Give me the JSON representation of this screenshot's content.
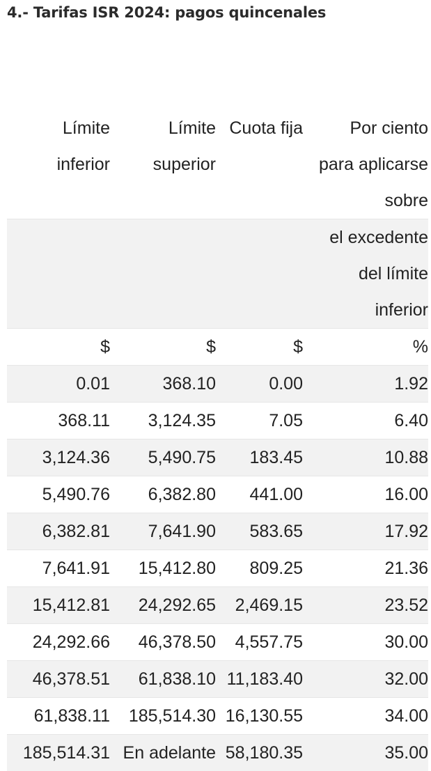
{
  "title": "4.- Tarifas ISR 2024: pagos quincenales",
  "table": {
    "header": {
      "col1": [
        "Límite",
        "inferior"
      ],
      "col2": [
        "Límite",
        "superior"
      ],
      "col3": [
        "Cuota fija"
      ],
      "col4_top": [
        "Por ciento",
        "para aplicarse",
        "sobre"
      ],
      "col4_bottom": [
        "el excedente",
        "del límite",
        "inferior"
      ]
    },
    "units": [
      "$",
      "$",
      "$",
      "%"
    ],
    "rows": [
      [
        "0.01",
        "368.10",
        "0.00",
        "1.92"
      ],
      [
        "368.11",
        "3,124.35",
        "7.05",
        "6.40"
      ],
      [
        "3,124.36",
        "5,490.75",
        "183.45",
        "10.88"
      ],
      [
        "5,490.76",
        "6,382.80",
        "441.00",
        "16.00"
      ],
      [
        "6,382.81",
        "7,641.90",
        "583.65",
        "17.92"
      ],
      [
        "7,641.91",
        "15,412.80",
        "809.25",
        "21.36"
      ],
      [
        "15,412.81",
        "24,292.65",
        "2,469.15",
        "23.52"
      ],
      [
        "24,292.66",
        "46,378.50",
        "4,557.75",
        "30.00"
      ],
      [
        "46,378.51",
        "61,838.10",
        "11,183.40",
        "32.00"
      ],
      [
        "61,838.11",
        "185,514.30",
        "16,130.55",
        "34.00"
      ],
      [
        "185,514.31",
        "En adelante",
        "58,180.35",
        "35.00"
      ]
    ]
  }
}
